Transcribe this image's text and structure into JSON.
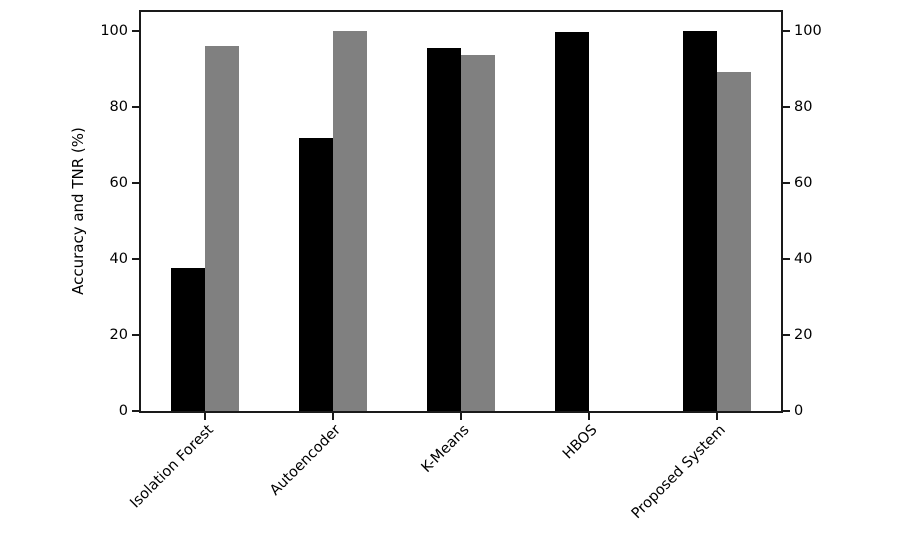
{
  "chart_data": {
    "type": "bar",
    "title": "",
    "categories": [
      "Isolation Forest",
      "Autoencoder",
      "K-Means",
      "HBOS",
      "Proposed System"
    ],
    "series": [
      {
        "name": "Accuracy",
        "color": "#000000",
        "values": [
          37.7,
          71.9,
          95.4,
          99.7,
          100
        ]
      },
      {
        "name": "TNR",
        "color": "#808080",
        "values": [
          96.0,
          100,
          93.8,
          0,
          89.1
        ]
      }
    ],
    "xlabel": "",
    "ylabel": "Accuracy and TNR (%)",
    "ylim": [
      0,
      105
    ],
    "yticks": [
      0,
      20,
      40,
      60,
      80,
      100
    ],
    "yticks_sides": [
      "left",
      "right"
    ],
    "x_tick_rotation": 45,
    "grid": false,
    "legend": "none",
    "bar_colors": {
      "accuracy": "#000000",
      "tnr": "#808080"
    },
    "spine_color": "#1a1a1a",
    "background_color": "#ffffff"
  }
}
